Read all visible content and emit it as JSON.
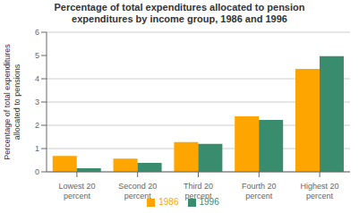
{
  "chart_data": {
    "type": "bar",
    "title": "Percentage of total expenditures allocated to pension\nexpenditures by income group, 1986 and 1996",
    "categories": [
      "Lowest 20\npercent",
      "Second 20\npercent",
      "Third 20\npercent",
      "Fourth 20\npercent",
      "Highest 20\npercent"
    ],
    "series": [
      {
        "name": "1986",
        "color": "#FFA500",
        "values": [
          0.68,
          0.57,
          1.28,
          2.38,
          4.42
        ]
      },
      {
        "name": "1996",
        "color": "#3A8C6E",
        "values": [
          0.15,
          0.38,
          1.2,
          2.23,
          4.97
        ]
      }
    ],
    "ylabel": "Percentage of total expenditures\nallocated to pensions",
    "ylim": [
      0,
      6
    ],
    "yticks": [
      0,
      1,
      2,
      3,
      4,
      5,
      6
    ],
    "grid": true,
    "legend": "bottom"
  }
}
